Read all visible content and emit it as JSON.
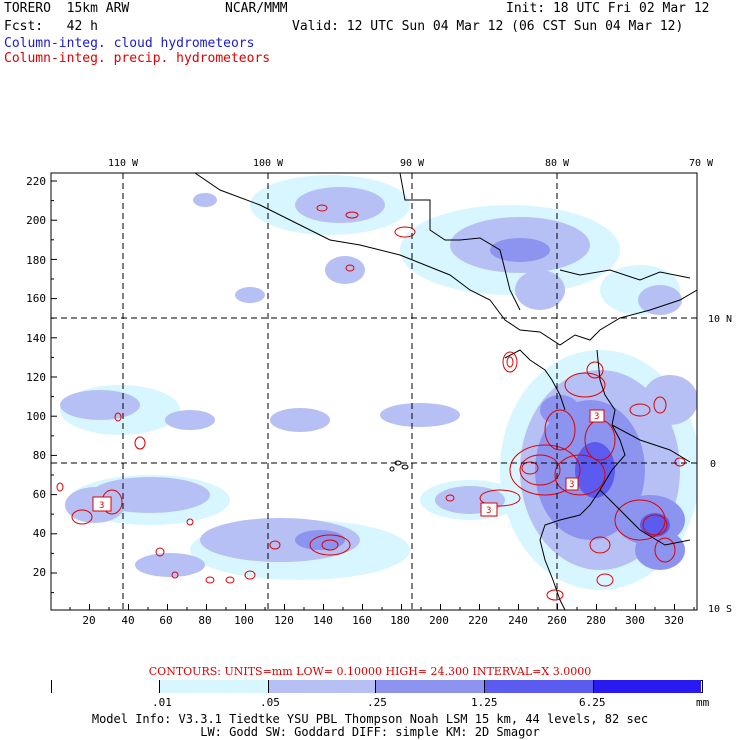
{
  "header": {
    "model": "TORERO  15km ARW",
    "org": "NCAR/MMM",
    "init": "Init: 18 UTC Fri 02 Mar 12",
    "fcst": "Fcst:   42 h",
    "valid": "Valid: 12 UTC Sun 04 Mar 12 (06 CST Sun 04 Mar 12)",
    "field_cloud": "Column-integ. cloud hydrometeors",
    "field_precip": "Column-integ. precip. hydrometeors"
  },
  "map": {
    "lon_labels": [
      "110 W",
      "100 W",
      "90 W",
      "80 W",
      "70 W"
    ],
    "lat_labels": [
      "10 N",
      "0",
      "10 S"
    ],
    "y_ticks": [
      "220",
      "200",
      "180",
      "160",
      "140",
      "120",
      "100",
      "80",
      "60",
      "40",
      "20"
    ],
    "x_ticks": [
      "20",
      "40",
      "60",
      "80",
      "100",
      "120",
      "140",
      "160",
      "180",
      "200",
      "220",
      "240",
      "260",
      "280",
      "300",
      "320"
    ],
    "contour_labels": [
      "3",
      "3",
      "3",
      "3"
    ]
  },
  "contours": {
    "label": "CONTOURS:  UNITS=mm  LOW= 0.10000      HIGH=  24.300      INTERVAL=X  3.0000"
  },
  "colorbar": {
    "labels": [
      ".01",
      ".05",
      ".25",
      "1.25",
      "6.25"
    ],
    "unit": "mm",
    "colors": [
      "#ffffff",
      "#d8f6ff",
      "#b6c0f5",
      "#8c94f0",
      "#5b5bf0",
      "#2a1af2"
    ]
  },
  "footer": {
    "line1": "Model Info: V3.3.1   Tiedtke YSU PBL  Thompson     Noah LSM  15 km,   44 levels,    82 sec",
    "line2": "LW: Godd SW: Goddard DIFF: simple KM: 2D Smagor"
  }
}
